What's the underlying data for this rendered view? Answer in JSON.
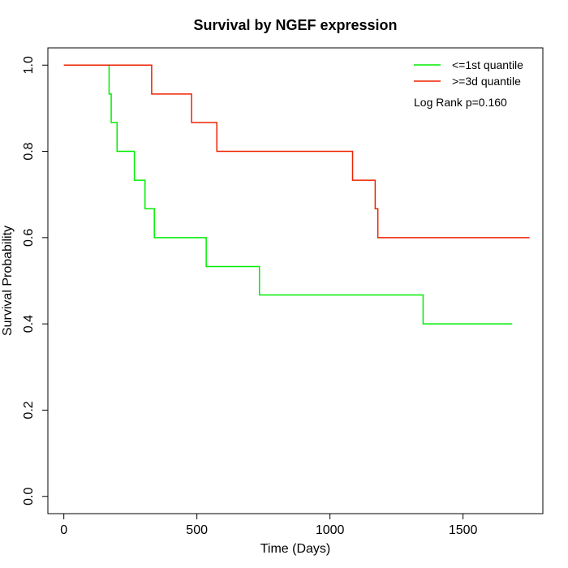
{
  "chart_data": {
    "type": "line",
    "title": "Survival by NGEF expression",
    "xlabel": "Time (Days)",
    "ylabel": "Survival Probability",
    "xlim": [
      -60,
      1800
    ],
    "ylim": [
      -0.04,
      1.04
    ],
    "xticks": [
      0,
      500,
      1000,
      1500
    ],
    "yticks": [
      0.0,
      0.2,
      0.4,
      0.6,
      0.8,
      1.0
    ],
    "xtick_labels": [
      "0",
      "500",
      "1000",
      "1500"
    ],
    "ytick_labels": [
      "0.0",
      "0.2",
      "0.4",
      "0.6",
      "0.8",
      "1.0"
    ],
    "grid": false,
    "legend_position": "top-right",
    "annotation": "Log Rank p=0.160",
    "series": [
      {
        "name": "<=1st quantile",
        "color": "#00ee00",
        "step": true,
        "x": [
          0,
          170,
          178,
          185,
          200,
          265,
          305,
          340,
          535,
          735,
          1350,
          1685
        ],
        "y": [
          1.0,
          0.933,
          0.867,
          0.867,
          0.8,
          0.733,
          0.667,
          0.6,
          0.533,
          0.467,
          0.4,
          0.4
        ]
      },
      {
        "name": ">=3d quantile",
        "color": "#ee2200",
        "step": true,
        "x": [
          0,
          330,
          480,
          575,
          1085,
          1170,
          1180,
          1750
        ],
        "y": [
          1.0,
          0.933,
          0.867,
          0.8,
          0.733,
          0.667,
          0.6,
          0.6
        ]
      }
    ]
  }
}
